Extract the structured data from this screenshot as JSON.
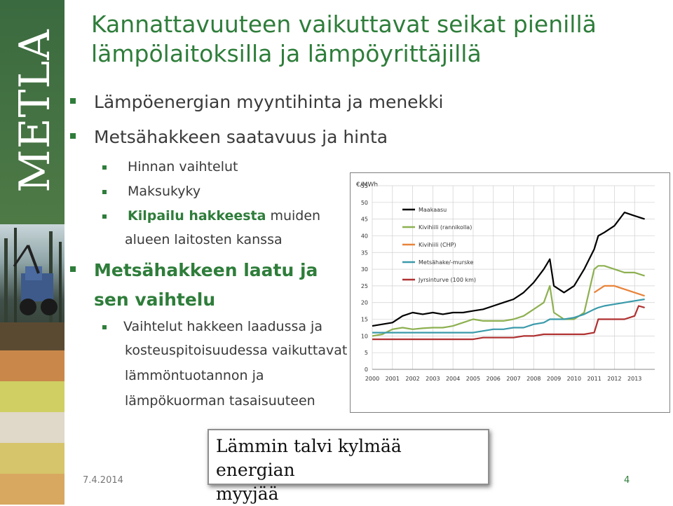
{
  "sidebar": {
    "logo_text": "METLA"
  },
  "title": {
    "line1": "Kannattavuuteen vaikuttavat seikat pienillä",
    "line2": "lämpölaitoksilla ja lämpöyrittäjillä"
  },
  "bullets": {
    "b1": "Lämpöenergian myyntihinta ja menekki",
    "b2": "Metsähakkeen saatavuus ja hinta",
    "b2_1": "Hinnan vaihtelut",
    "b2_2": "Maksukyky",
    "b2_3_bold": "Kilpailu hakkeesta",
    "b2_3_rest": " muiden",
    "b2_3_cont": "alueen laitosten kanssa",
    "b3_line1": "Metsähakkeen laatu ja",
    "b3_line2": "sen vaihtelu",
    "b3_1_line1": "Vaihtelut hakkeen laadussa ja",
    "b3_1_line2": "kosteuspitoisuudessa vaikuttavat",
    "b3_1_line3": "lämmöntuotannon ja",
    "b3_1_line4": "lämpökuorman tasaisuuteen"
  },
  "quote": {
    "line1": "Lämmin talvi kylmää energian",
    "line2": "myyjää"
  },
  "footer": {
    "date": "7.4.2014",
    "page": "4"
  },
  "colors": {
    "accent": "#2e7d3a",
    "maakaasu": "#000000",
    "kivihiili_rannikolla": "#8db050",
    "kivihiili_chp": "#e8833a",
    "metsahake": "#3a9aaa",
    "jyrsinturve": "#b03030"
  },
  "chart_data": {
    "type": "line",
    "ylabel": "€/MWh",
    "ylim": [
      0,
      55
    ],
    "yticks": [
      0,
      5,
      10,
      15,
      20,
      25,
      30,
      35,
      40,
      45,
      50,
      55
    ],
    "xlim": [
      2000,
      2014
    ],
    "xticks": [
      2000,
      2001,
      2002,
      2003,
      2004,
      2005,
      2006,
      2007,
      2008,
      2009,
      2010,
      2011,
      2012,
      2013
    ],
    "grid": true,
    "legend_placement": "top-left",
    "series": [
      {
        "name": "Maakaasu",
        "color": "#000000",
        "x": [
          2000,
          2000.5,
          2001,
          2001.5,
          2002,
          2002.5,
          2003,
          2003.5,
          2004,
          2004.5,
          2005,
          2005.5,
          2006,
          2006.5,
          2007,
          2007.5,
          2008,
          2008.5,
          2008.8,
          2009,
          2009.5,
          2010,
          2010.5,
          2011,
          2011.2,
          2011.5,
          2012,
          2012.5,
          2013,
          2013.5
        ],
        "y": [
          13,
          13.5,
          14,
          16,
          17,
          16.5,
          17,
          16.5,
          17,
          17,
          17.5,
          18,
          19,
          20,
          21,
          23,
          26,
          30,
          33,
          25,
          23,
          25,
          30,
          36,
          40,
          41,
          43,
          47,
          46,
          45
        ]
      },
      {
        "name": "Kivihiili (rannikolla)",
        "color": "#8db050",
        "x": [
          2000,
          2000.5,
          2001,
          2001.5,
          2002,
          2002.5,
          2003,
          2003.5,
          2004,
          2004.5,
          2005,
          2005.5,
          2006,
          2006.5,
          2007,
          2007.5,
          2008,
          2008.5,
          2008.8,
          2009,
          2009.5,
          2010,
          2010.5,
          2011,
          2011.2,
          2011.5,
          2012,
          2012.5,
          2013,
          2013.5
        ],
        "y": [
          10,
          10.5,
          12,
          12.5,
          12,
          12.3,
          12.5,
          12.5,
          13,
          14,
          15,
          14.5,
          14.5,
          14.5,
          15,
          16,
          18,
          20,
          25,
          17,
          15,
          15,
          17,
          30,
          31,
          31,
          30,
          29,
          29,
          28
        ]
      },
      {
        "name": "Kivihiili (CHP)",
        "color": "#e8833a",
        "x": [
          2011,
          2011.5,
          2012,
          2012.5,
          2013,
          2013.5
        ],
        "y": [
          23,
          25,
          25,
          24,
          23,
          22
        ]
      },
      {
        "name": "Metsähake/-murske",
        "color": "#3a9aaa",
        "x": [
          2000,
          2000.5,
          2001,
          2001.5,
          2002,
          2002.5,
          2003,
          2003.5,
          2004,
          2004.5,
          2005,
          2005.5,
          2006,
          2006.5,
          2007,
          2007.5,
          2008,
          2008.5,
          2008.8,
          2009,
          2009.5,
          2010,
          2010.5,
          2011,
          2011.2,
          2011.5,
          2012,
          2012.5,
          2013,
          2013.5
        ],
        "y": [
          11,
          11,
          11,
          11,
          11,
          11,
          11,
          11,
          11,
          11,
          11,
          11.5,
          12,
          12,
          12.5,
          12.5,
          13.5,
          14,
          15,
          15,
          15,
          15.5,
          16.5,
          18,
          18.5,
          19,
          19.5,
          20,
          20.5,
          21
        ]
      },
      {
        "name": "Jyrsinturve (100 km)",
        "color": "#b03030",
        "x": [
          2000,
          2000.5,
          2001,
          2001.5,
          2002,
          2002.5,
          2003,
          2003.5,
          2004,
          2004.5,
          2005,
          2005.5,
          2006,
          2006.5,
          2007,
          2007.5,
          2008,
          2008.5,
          2008.8,
          2009,
          2009.5,
          2010,
          2010.5,
          2011,
          2011.2,
          2011.5,
          2012,
          2012.5,
          2013,
          2013.2,
          2013.5
        ],
        "y": [
          9,
          9,
          9,
          9,
          9,
          9,
          9,
          9,
          9,
          9,
          9,
          9.5,
          9.5,
          9.5,
          9.5,
          10,
          10,
          10.5,
          10.5,
          10.5,
          10.5,
          10.5,
          10.5,
          11,
          15,
          15,
          15,
          15,
          16,
          19,
          18.5
        ]
      }
    ]
  }
}
